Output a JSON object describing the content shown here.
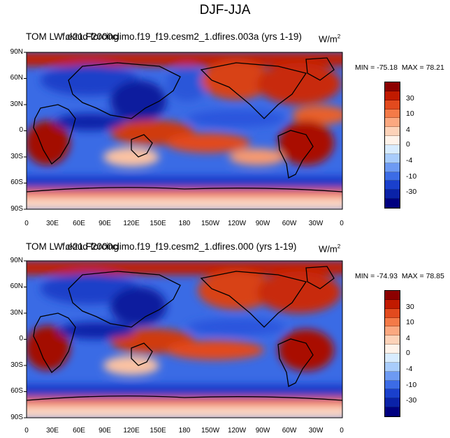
{
  "figure_title": "DJF-JJA",
  "color_levels": [
    "30",
    "10",
    "4",
    "0",
    "-4",
    "-10",
    "-30"
  ],
  "colorbar_colors": [
    "#8c0000",
    "#c11a00",
    "#e24a1e",
    "#f47a48",
    "#fba880",
    "#fdd2b8",
    "#fff3ea",
    "#d8ecff",
    "#a8ccfc",
    "#6d9af3",
    "#3c6ce6",
    "#1a40cc",
    "#0a22a8",
    "#000080"
  ],
  "lat_labels": [
    "90N",
    "60N",
    "30N",
    "0",
    "30S",
    "60S",
    "90S"
  ],
  "lon_labels": [
    "0",
    "30E",
    "60E",
    "90E",
    "120E",
    "150E",
    "180",
    "150W",
    "120W",
    "90W",
    "60W",
    "30W",
    "0"
  ],
  "panels": [
    {
      "left_title": "TOM LW cloud forcing",
      "center_title": "f.e21.F2000climo.f19_f19.cesm2_1.dfires.003a (yrs 1-19)",
      "units": "W/m",
      "units_exp": "2",
      "min_label": "MIN = -75.18",
      "max_label": "MAX =  78.21"
    },
    {
      "left_title": "TOM LW cloud forcing",
      "center_title": "f.e21.F2000climo.f19_f19.cesm2_1.dfires.000 (yrs 1-19)",
      "units": "W/m",
      "units_exp": "2",
      "min_label": "MIN = -74.93",
      "max_label": "MAX =  78.85"
    }
  ]
}
